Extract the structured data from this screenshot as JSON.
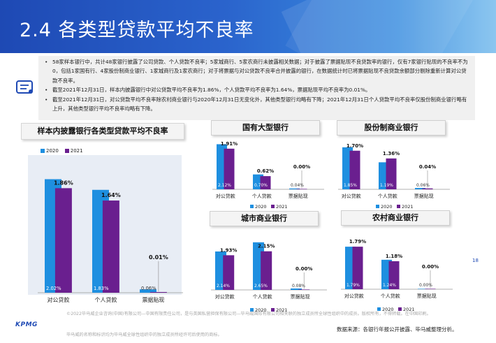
{
  "page": {
    "title": "2.4 各类型贷款平均不良率",
    "page_number": "18",
    "brand": "KPMG",
    "source": "数据来源：各银行年报公开披露、毕马威整理分析。",
    "footer_note": "©2022毕马威企业咨询(中国)有限公司—中国有限责任公司，是与英国私营担保有限公司—毕马威国际有限公司相关联的独立成员所全球性组织中的成员。版权所有，不得转载。在中国印刷。",
    "footer_note2": "毕马威的名称和标识均为毕马威全球性组织中的独立成员所经许可后使用的商标。",
    "colors": {
      "c2020": "#1e8fe0",
      "c2021": "#6a1f8f",
      "header": "#1e49b4"
    }
  },
  "bullets": [
    "58家样本银行中，共计48家银行披露了公司贷款、个人贷款不良率；5家城商行、5家农商行未披露相关数据；对于披露了票据贴现不良贷款率的银行，仅有7家银行贴现的不良率不为0，包括1家国有行、4家股份制商业银行、1家城商行及1家农商行；对于将票据与对公贷款不良率合并披露的银行，在数据统计时已将票据贴现不良贷款余额部分剔除重新计算对公贷款不良率。",
    "截至2021年12月31日，样本内披露银行中对公贷款平均不良率为1.86%，个人贷款平均不良率为1.64%，票据贴现平均不良率为0.01%。",
    "截至2021年12月31日，对公贷款平均不良率除农村商业银行与2020年12月31日无变化外，其他类型银行均略有下降；2021年12月31日个人贷款平均不良率仅股份制商业银行略有上升，其他类型银行平均不良率均略有下降。"
  ],
  "chart_data": [
    {
      "type": "bar",
      "title": "样本内披露银行各类型贷款平均不良率",
      "categories": [
        "对公贷款",
        "个人贷款",
        "票据贴现"
      ],
      "series": [
        {
          "name": "2020",
          "values": [
            2.02,
            1.83,
            0.06
          ],
          "labels": [
            "2.02%",
            "1.83%",
            "0.06%"
          ]
        },
        {
          "name": "2021",
          "values": [
            1.86,
            1.64,
            0.01
          ],
          "labels": [
            "1.86%",
            "1.64%",
            "0.01%"
          ]
        }
      ],
      "legend": "top-left",
      "ylim": [
        0,
        2.2
      ]
    },
    {
      "type": "bar",
      "title": "国有大型银行",
      "categories": [
        "对公贷款",
        "个人贷款",
        "票据贴现"
      ],
      "series": [
        {
          "name": "2020",
          "values": [
            2.12,
            0.7,
            0.04
          ],
          "labels": [
            "2.12%",
            "0.70%",
            "0.04%"
          ]
        },
        {
          "name": "2021",
          "values": [
            1.91,
            0.62,
            0.0
          ],
          "labels": [
            "1.91%",
            "0.62%",
            "0.00%"
          ]
        }
      ],
      "legend": "bottom",
      "ylim": [
        0,
        2.2
      ]
    },
    {
      "type": "bar",
      "title": "股份制商业银行",
      "categories": [
        "对公贷款",
        "个人贷款",
        "票据贴现"
      ],
      "series": [
        {
          "name": "2020",
          "values": [
            1.85,
            1.19,
            0.06
          ],
          "labels": [
            "1.85%",
            "1.19%",
            "0.06%"
          ]
        },
        {
          "name": "2021",
          "values": [
            1.7,
            1.36,
            0.04
          ],
          "labels": [
            "1.70%",
            "1.36%",
            "0.04%"
          ]
        }
      ],
      "legend": "bottom",
      "ylim": [
        0,
        2.0
      ]
    },
    {
      "type": "bar",
      "title": "城市商业银行",
      "categories": [
        "对公贷款",
        "个人贷款",
        "票据贴现"
      ],
      "series": [
        {
          "name": "2020",
          "values": [
            2.14,
            2.65,
            0.08
          ],
          "labels": [
            "2.14%",
            "2.65%",
            "0.08%"
          ]
        },
        {
          "name": "2021",
          "values": [
            1.93,
            2.15,
            0.0
          ],
          "labels": [
            "1.93%",
            "2.15%",
            "0.00%"
          ]
        }
      ],
      "legend": "bottom",
      "ylim": [
        0,
        2.8
      ]
    },
    {
      "type": "bar",
      "title": "农村商业银行",
      "categories": [
        "对公贷款",
        "个人贷款",
        "票据贴现"
      ],
      "series": [
        {
          "name": "2020",
          "values": [
            1.79,
            1.24,
            0.0
          ],
          "labels": [
            "1.79%",
            "1.24%",
            "0.00%"
          ]
        },
        {
          "name": "2021",
          "values": [
            1.79,
            1.18,
            0.0
          ],
          "labels": [
            "1.79%",
            "1.18%",
            "0.00%"
          ]
        }
      ],
      "legend": "bottom",
      "ylim": [
        0,
        2.0
      ]
    }
  ]
}
